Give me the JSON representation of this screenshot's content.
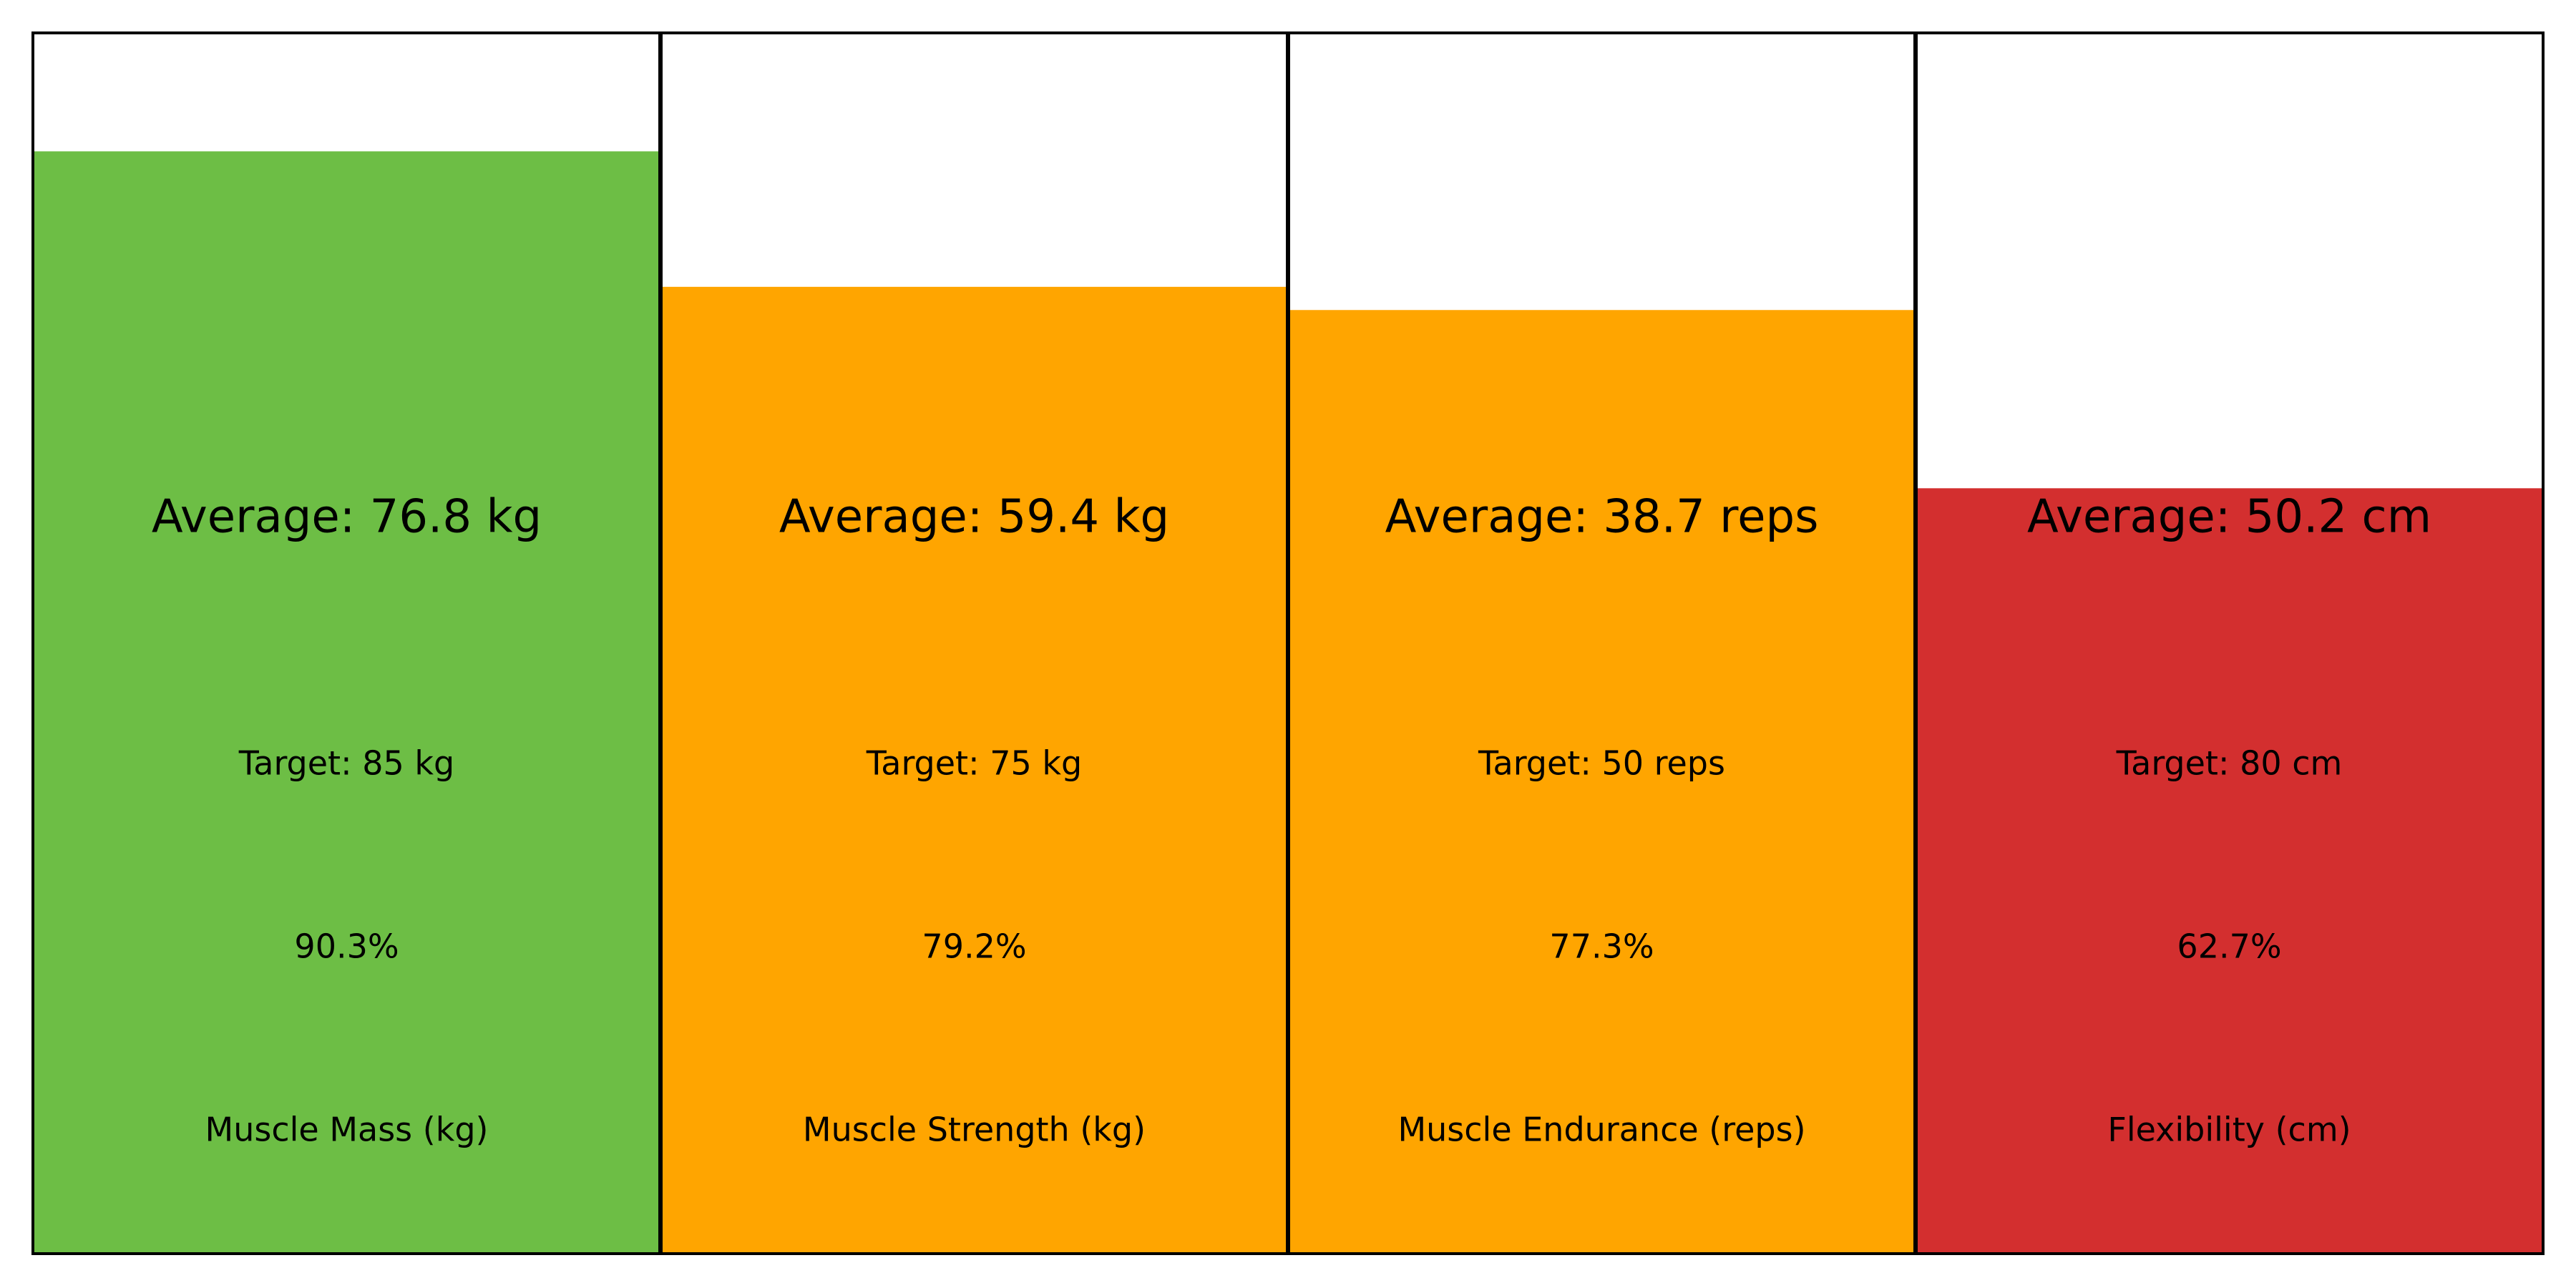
{
  "chart_data": {
    "type": "bar",
    "categories": [
      "Muscle Mass (kg)",
      "Muscle Strength (kg)",
      "Muscle Endurance (reps)",
      "Flexibility (cm)"
    ],
    "values": [
      90.3,
      79.2,
      77.3,
      62.7
    ],
    "value_unit": "% of target",
    "ylim": [
      0,
      100
    ],
    "grid": false,
    "panels": [
      {
        "label": "Muscle Mass (kg)",
        "average_text": "Average: 76.8 kg",
        "target_text": "Target: 85 kg",
        "percent_text": "90.3%",
        "percent": 90.3,
        "color": "#6dbe45"
      },
      {
        "label": "Muscle Strength (kg)",
        "average_text": "Average: 59.4 kg",
        "target_text": "Target: 75 kg",
        "percent_text": "79.2%",
        "percent": 79.2,
        "color": "#ffa500"
      },
      {
        "label": "Muscle Endurance (reps)",
        "average_text": "Average: 38.7 reps",
        "target_text": "Target: 50 reps",
        "percent_text": "77.3%",
        "percent": 77.3,
        "color": "#ffa500"
      },
      {
        "label": "Flexibility (cm)",
        "average_text": "Average: 50.2 cm",
        "target_text": "Target: 80 cm",
        "percent_text": "62.7%",
        "percent": 62.7,
        "color": "#d32f2f"
      }
    ]
  }
}
